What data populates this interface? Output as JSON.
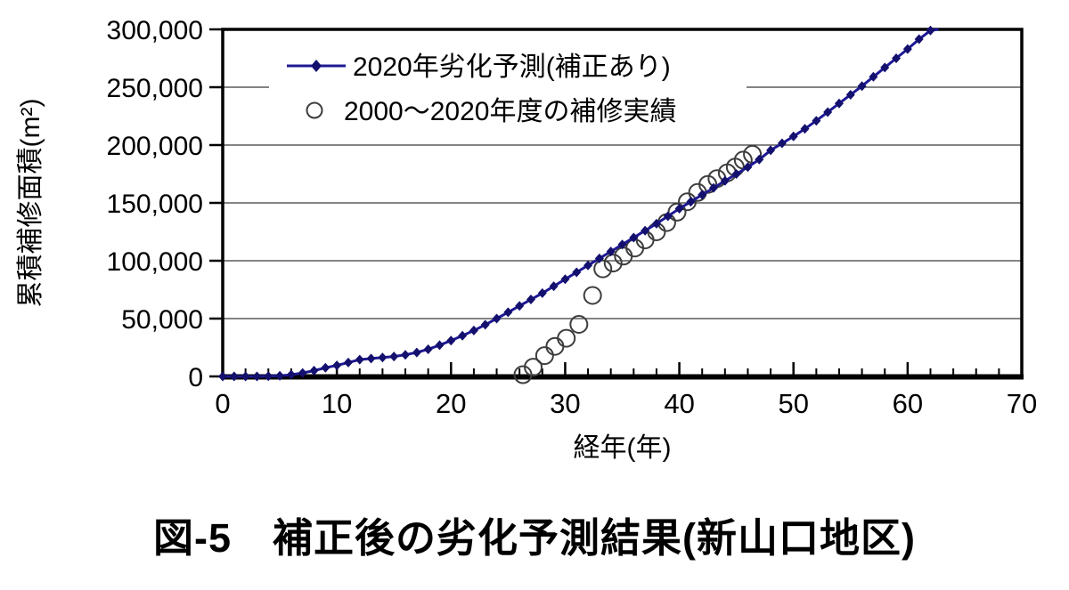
{
  "figure": {
    "caption": "図-5　補正後の劣化予測結果(新山口地区)"
  },
  "chart_data": {
    "type": "line",
    "title": "",
    "xlabel": "経年(年)",
    "ylabel": "累積補修面積(m²)",
    "xlim": [
      0,
      70
    ],
    "ylim": [
      0,
      300000
    ],
    "x_ticks": [
      0,
      10,
      20,
      30,
      40,
      50,
      60,
      70
    ],
    "x_minor_tick_step": 2,
    "y_ticks": [
      0,
      50000,
      100000,
      150000,
      200000,
      250000,
      300000
    ],
    "y_tick_labels": [
      "0",
      "50,000",
      "100,000",
      "150,000",
      "200,000",
      "250,000",
      "300,000"
    ],
    "grid": "horizontal",
    "legend_position": "inside-top-left",
    "series": [
      {
        "name": "2020年劣化予測(補正あり)",
        "type": "line",
        "marker": "diamond",
        "color": "#1d1894",
        "marker_color": "#13106e",
        "points": [
          [
            0,
            0
          ],
          [
            1,
            0
          ],
          [
            2,
            0
          ],
          [
            3,
            0
          ],
          [
            4,
            200
          ],
          [
            5,
            600
          ],
          [
            6,
            1500
          ],
          [
            7,
            3000
          ],
          [
            8,
            5000
          ],
          [
            9,
            7500
          ],
          [
            10,
            9500
          ],
          [
            11,
            12000
          ],
          [
            12,
            14500
          ],
          [
            13,
            15500
          ],
          [
            14,
            16300
          ],
          [
            15,
            17200
          ],
          [
            16,
            18700
          ],
          [
            17,
            20700
          ],
          [
            18,
            23500
          ],
          [
            19,
            27000
          ],
          [
            20,
            31000
          ],
          [
            21,
            35200
          ],
          [
            22,
            39700
          ],
          [
            23,
            44700
          ],
          [
            24,
            50000
          ],
          [
            25,
            55500
          ],
          [
            26,
            61000
          ],
          [
            27,
            66500
          ],
          [
            28,
            72000
          ],
          [
            29,
            78000
          ],
          [
            30,
            84000
          ],
          [
            31,
            90000
          ],
          [
            32,
            96000
          ],
          [
            33,
            102000
          ],
          [
            34,
            108000
          ],
          [
            35,
            114000
          ],
          [
            36,
            120000
          ],
          [
            37,
            126000
          ],
          [
            38,
            132000
          ],
          [
            39,
            138500
          ],
          [
            40,
            145000
          ],
          [
            41,
            151000
          ],
          [
            42,
            157000
          ],
          [
            43,
            163000
          ],
          [
            44,
            169000
          ],
          [
            45,
            175000
          ],
          [
            46,
            181000
          ],
          [
            47,
            187500
          ],
          [
            48,
            195500
          ],
          [
            49,
            201500
          ],
          [
            50,
            207500
          ],
          [
            51,
            214000
          ],
          [
            52,
            221000
          ],
          [
            53,
            228500
          ],
          [
            54,
            236000
          ],
          [
            55,
            243500
          ],
          [
            56,
            251000
          ],
          [
            57,
            259000
          ],
          [
            58,
            267000
          ],
          [
            59,
            275000
          ],
          [
            60,
            283000
          ],
          [
            61,
            291500
          ],
          [
            62,
            299000
          ],
          [
            62.7,
            300000
          ]
        ]
      },
      {
        "name": "2000〜2020年度の補修実績",
        "type": "scatter",
        "marker": "circle-open",
        "color": "#3d3d3d",
        "points": [
          [
            26.3,
            1500
          ],
          [
            27.2,
            8000
          ],
          [
            28.2,
            18000
          ],
          [
            29.1,
            26000
          ],
          [
            30.1,
            33000
          ],
          [
            31.2,
            45000
          ],
          [
            32.4,
            70000
          ],
          [
            33.3,
            93000
          ],
          [
            34.2,
            98000
          ],
          [
            35.1,
            104000
          ],
          [
            36.1,
            111000
          ],
          [
            37.0,
            118000
          ],
          [
            38.0,
            125000
          ],
          [
            38.9,
            133000
          ],
          [
            39.8,
            142000
          ],
          [
            40.7,
            151000
          ],
          [
            41.6,
            159000
          ],
          [
            42.5,
            166000
          ],
          [
            43.3,
            171000
          ],
          [
            44.2,
            176000
          ],
          [
            44.9,
            181000
          ],
          [
            45.6,
            187000
          ],
          [
            46.4,
            192000
          ]
        ]
      }
    ]
  },
  "colors": {
    "background": "#ffffff",
    "frame": "#000000",
    "grid": "#3a3a3a",
    "prediction_line": "#1d1894",
    "prediction_marker": "#13106e",
    "actual_circle": "#3d3d3d",
    "text": "#000000"
  }
}
